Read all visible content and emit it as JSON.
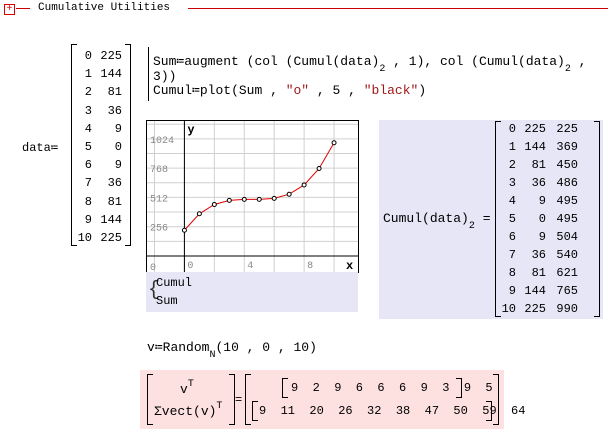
{
  "header": {
    "title": "Cumulative Utilities",
    "expand_icon": "plus-box-icon",
    "accent": "#cc0000"
  },
  "data_def": {
    "name": "data",
    "assign": "≔",
    "rows": [
      [
        "0",
        "225"
      ],
      [
        "1",
        "144"
      ],
      [
        "2",
        "81"
      ],
      [
        "3",
        "36"
      ],
      [
        "4",
        "9"
      ],
      [
        "5",
        "0"
      ],
      [
        "6",
        "9"
      ],
      [
        "7",
        "36"
      ],
      [
        "8",
        "81"
      ],
      [
        "9",
        "144"
      ],
      [
        "10",
        "225"
      ]
    ]
  },
  "program": {
    "line1": {
      "lhs": "Sum",
      "assign": "≔",
      "fn": "augment",
      "c1": "col",
      "inner": "Cumul",
      "arg": "data",
      "sub": "2",
      "i1": "1",
      "i2": "3"
    },
    "line2": {
      "lhs": "Cumul",
      "assign": "≔",
      "fn": "plot",
      "a1": "Sum",
      "a2": "\"o\"",
      "a3": "5",
      "a4": "\"black\""
    }
  },
  "chart_data": {
    "type": "line",
    "x": [
      0,
      1,
      2,
      3,
      4,
      5,
      6,
      7,
      8,
      9,
      10
    ],
    "y": [
      225,
      369,
      450,
      486,
      495,
      495,
      504,
      540,
      621,
      765,
      990
    ],
    "xlabel": "x",
    "ylabel": "y",
    "xticks": [
      "0",
      "4",
      "8"
    ],
    "yticks": [
      "0",
      "256",
      "512",
      "768",
      "1024"
    ],
    "xlim": [
      -2.5,
      11.6
    ],
    "ylim": [
      -140,
      1180
    ],
    "grid": true,
    "line_color": "#e00000",
    "marker": "circle",
    "marker_color": "#000000"
  },
  "legend": {
    "items": [
      "Cumul",
      "Sum"
    ]
  },
  "cumul_result": {
    "lhs_fn": "Cumul",
    "arg": "data",
    "sub": "2",
    "eq": "=",
    "rows": [
      [
        "0",
        "225",
        "225"
      ],
      [
        "1",
        "144",
        "369"
      ],
      [
        "2",
        "81",
        "450"
      ],
      [
        "3",
        "36",
        "486"
      ],
      [
        "4",
        "9",
        "495"
      ],
      [
        "5",
        "0",
        "495"
      ],
      [
        "6",
        "9",
        "504"
      ],
      [
        "7",
        "36",
        "540"
      ],
      [
        "8",
        "81",
        "621"
      ],
      [
        "9",
        "144",
        "765"
      ],
      [
        "10",
        "225",
        "990"
      ]
    ]
  },
  "random_def": {
    "lhs": "v",
    "assign": "≔",
    "fn": "Random",
    "sub": "N",
    "args": "(10 , 0 , 10)"
  },
  "vector_result": {
    "top": "v",
    "top_sup": "T",
    "bottom": "Σvect",
    "bottom_arg": "(v)",
    "bottom_sup": "T",
    "eq": "=",
    "row1": "9  2  9  6  6  6  9  3  9  5",
    "row2": "9  11  20  26  32  38  47  50  59  64"
  }
}
